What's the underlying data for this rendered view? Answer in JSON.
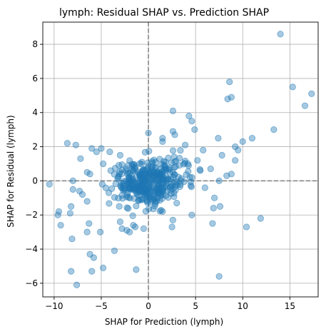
{
  "chart_data": {
    "type": "scatter",
    "title": "lymph: Residual SHAP vs. Prediction SHAP",
    "xlabel": "SHAP for Prediction (lymph)",
    "ylabel": "SHAP for Residual (lymph)",
    "xlim": [
      -11.2,
      18.0
    ],
    "ylim": [
      -6.8,
      9.3
    ],
    "xticks": [
      -10,
      -5,
      0,
      5,
      10,
      15
    ],
    "yticks": [
      -6,
      -4,
      -2,
      0,
      2,
      4,
      6,
      8
    ],
    "xtick_labels": [
      "−10",
      "−5",
      "0",
      "5",
      "10",
      "15"
    ],
    "ytick_labels": [
      "−6",
      "−4",
      "−2",
      "0",
      "2",
      "4",
      "6",
      "8"
    ],
    "grid": true,
    "reference_lines": {
      "x": 0,
      "y": 0,
      "style": "dashed",
      "color": "#808080"
    },
    "point_color": "#1f77b4",
    "point_alpha": 0.4,
    "series": [
      {
        "x": [
          14.0,
          15.3,
          17.3,
          16.6,
          13.3,
          8.6,
          8.8,
          8.4,
          11.0,
          10.0,
          4.3,
          4.6,
          2.6,
          4.9,
          2.6,
          7.4,
          7.5,
          9.2,
          9.5,
          0.0,
          1.5,
          2.8,
          1.5,
          3.9,
          5.8,
          6.6,
          -8.6,
          -7.7,
          -8.0,
          -6.5,
          -5.0,
          -4.8,
          -4.1,
          -3.0,
          -5.5,
          -7.2,
          -6.0,
          5.2,
          4.2,
          7.8,
          8.3,
          8.8,
          9.2,
          6.0,
          5.5,
          -10.5,
          -9.5,
          -8.2,
          -8.3,
          -9.3,
          -9.6,
          -7.0,
          -6.5,
          -8.0,
          -6.2,
          -4.0,
          -1.4,
          -3.2,
          -4.9,
          -7.3,
          -6.5,
          -6.3,
          -1.4,
          6.9,
          7.0,
          4.6,
          3.0,
          2.6,
          1.5,
          -0.5,
          -1.6,
          -2.3,
          -3.0,
          11.9,
          10.4,
          7.6,
          6.8,
          2.5,
          -2.0,
          -2.8
        ],
        "y": [
          8.6,
          5.5,
          5.1,
          4.4,
          3.0,
          5.8,
          4.9,
          4.8,
          2.5,
          2.3,
          3.8,
          3.5,
          4.1,
          3.0,
          2.9,
          2.5,
          0.0,
          2.0,
          1.8,
          2.8,
          2.3,
          2.7,
          2.5,
          2.1,
          1.8,
          0.7,
          2.2,
          2.1,
          0.0,
          0.5,
          1.9,
          1.0,
          1.7,
          1.5,
          1.7,
          1.3,
          1.9,
          1.2,
          1.0,
          1.5,
          0.3,
          0.4,
          1.2,
          -0.4,
          0.6,
          -0.2,
          -1.8,
          -1.5,
          -1.9,
          -2.6,
          -2.0,
          -0.8,
          -1.2,
          -0.5,
          0.4,
          0.6,
          -0.4,
          0.2,
          -0.2,
          -0.6,
          -3.0,
          -2.5,
          -2.7,
          -1.6,
          -1.0,
          -2.0,
          -1.3,
          -2.3,
          -1.8,
          -2.8,
          -2.6,
          -2.9,
          -2.4,
          -2.2,
          -2.7,
          -1.5,
          -2.5,
          -2.7,
          -3.0,
          -2.8
        ]
      }
    ],
    "outliers_low": {
      "x": [
        -7.6,
        -8.2,
        -6.0,
        -4.8,
        -1.3,
        7.5,
        -8.1,
        -5.8,
        -6.2,
        -3.6,
        -5.1
      ],
      "y": [
        -6.1,
        -5.3,
        -5.3,
        -5.1,
        -5.2,
        -5.6,
        -3.4,
        -4.5,
        -4.3,
        -4.1,
        -3.0
      ]
    }
  }
}
